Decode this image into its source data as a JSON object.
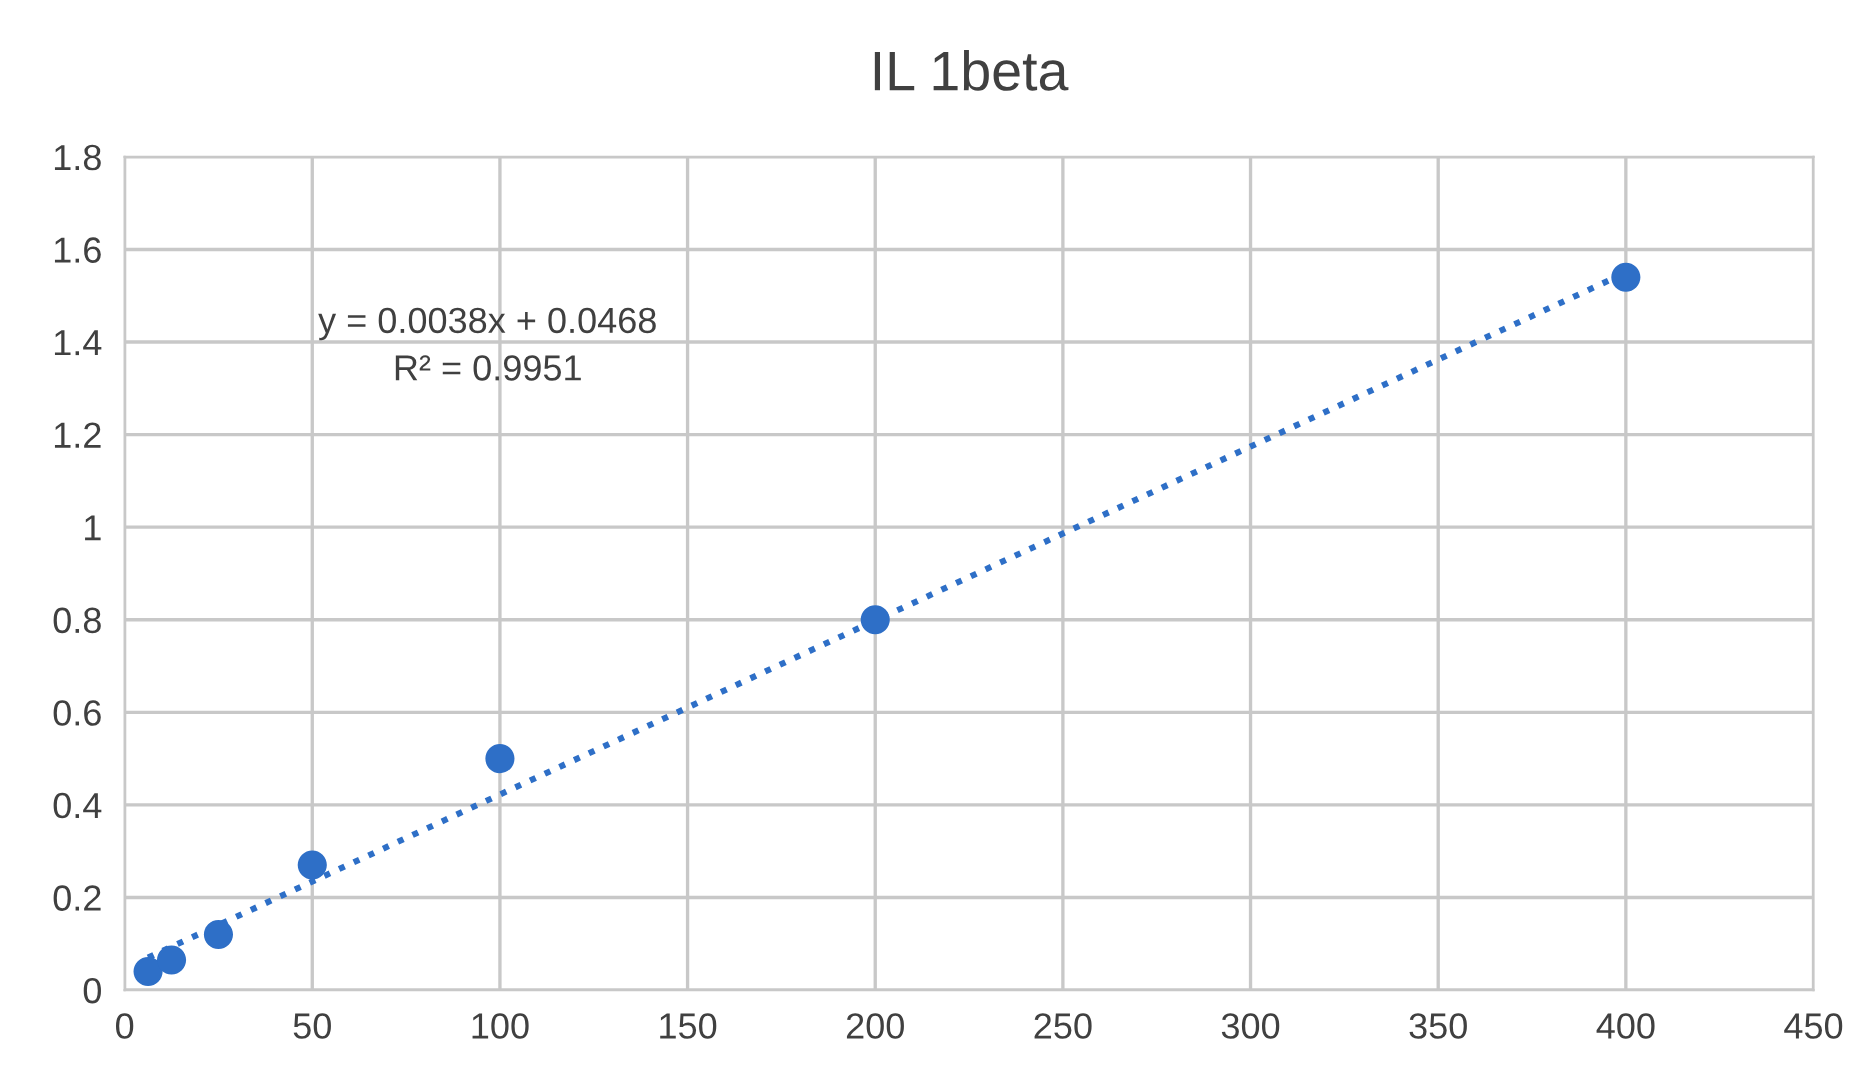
{
  "chart_data": {
    "type": "scatter",
    "title": "IL 1beta",
    "series": [
      {
        "color": "#2e6fc7",
        "marker": "circle",
        "x": [
          6.25,
          12.5,
          25,
          50,
          100,
          200,
          400
        ],
        "values": [
          0.04,
          0.065,
          0.12,
          0.27,
          0.5,
          0.8,
          1.54
        ]
      },
      {
        "type": "line",
        "color": "#2e6fc7",
        "line_style": "dotted",
        "marker": "none",
        "x": [
          6.25,
          400
        ],
        "values": [
          0.07,
          1.55
        ]
      }
    ],
    "annotations": [
      "y = 0.0038x + 0.0468",
      "R² = 0.9951"
    ],
    "xlim": [
      0,
      450
    ],
    "xticks": [
      0,
      50,
      100,
      150,
      200,
      250,
      300,
      350,
      400,
      450
    ],
    "ylim": [
      0,
      1.8
    ],
    "yticks": [
      0,
      0.2,
      0.4,
      0.6,
      0.8,
      1,
      1.2,
      1.4,
      1.6,
      1.8
    ],
    "grid": true,
    "legend": false
  }
}
